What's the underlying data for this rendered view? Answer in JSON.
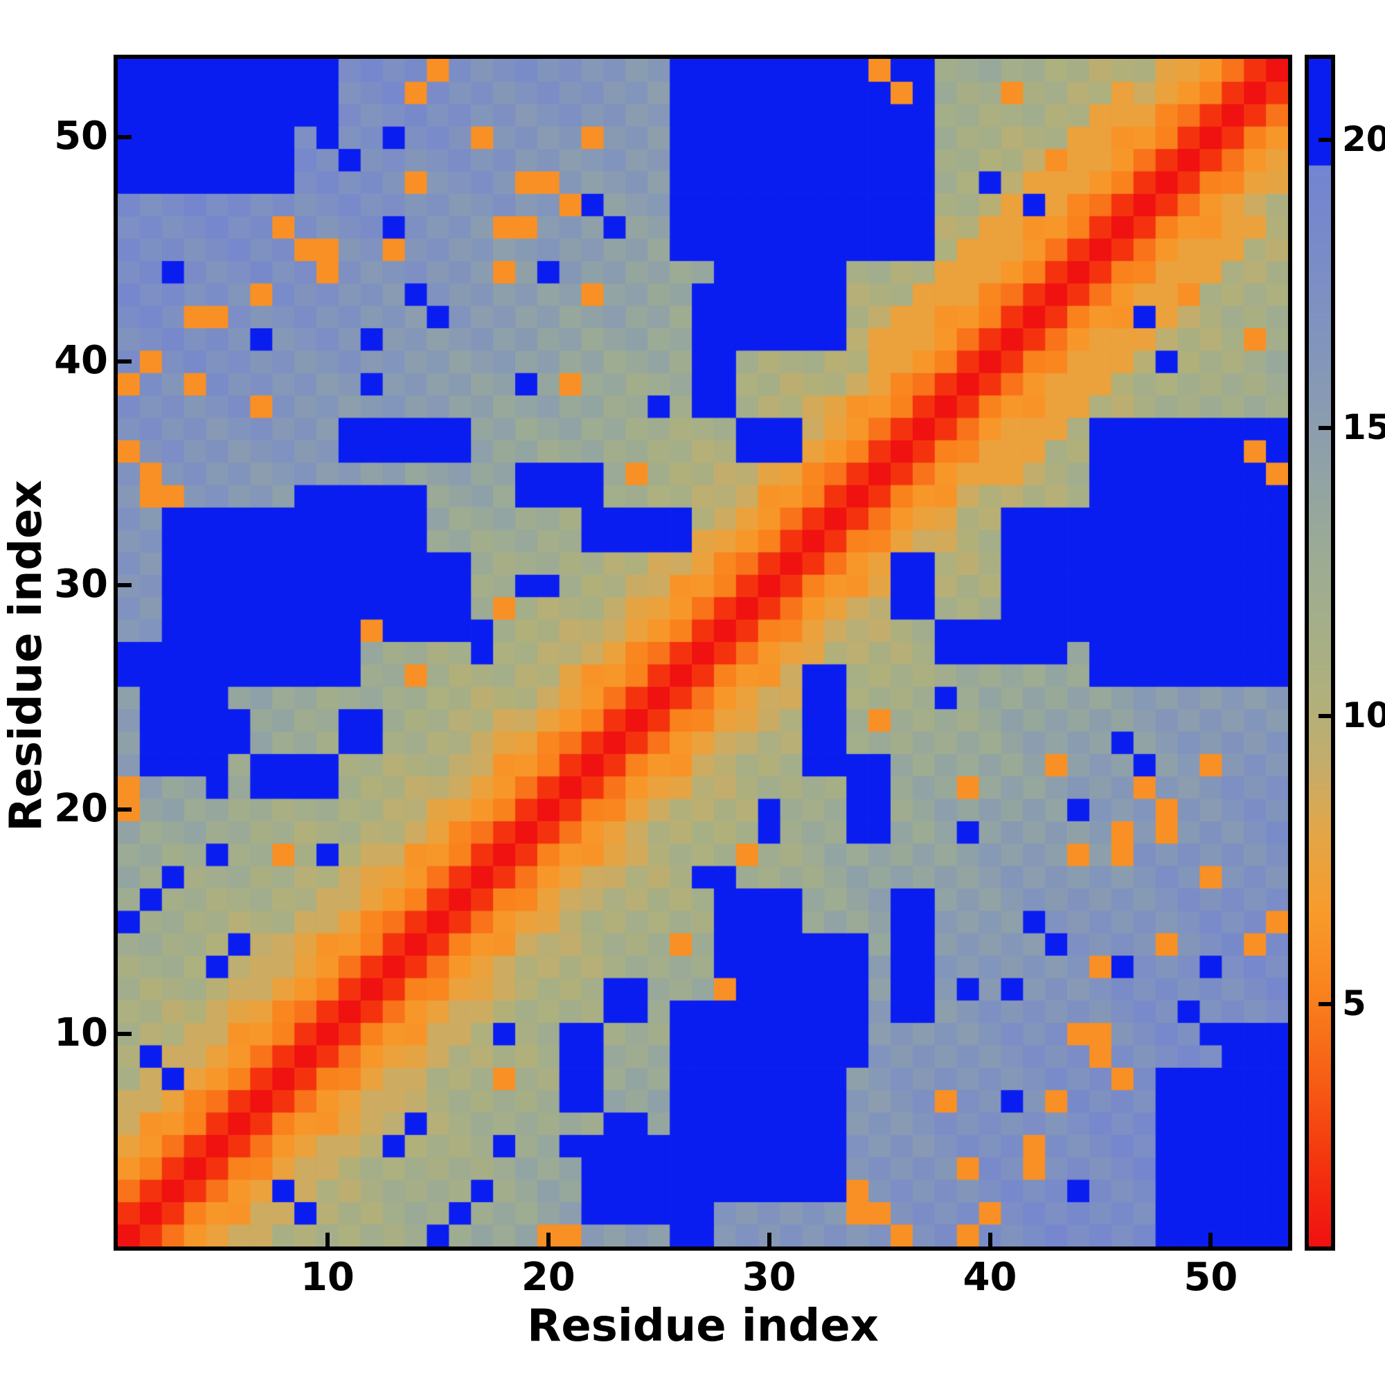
{
  "figure": {
    "background": "#ffffff",
    "frame_color": "#000000",
    "xlabel": "Residue index",
    "ylabel": "Residue index",
    "x_ticks": [
      10,
      20,
      30,
      40,
      50
    ],
    "y_ticks": [
      10,
      20,
      30,
      40,
      50
    ],
    "colorbar_ticks": [
      5,
      10,
      15,
      20
    ]
  },
  "chart_data": {
    "type": "heatmap",
    "title": "",
    "xlabel": "Residue index",
    "ylabel": "Residue index",
    "n_residues": 53,
    "x_range": [
      1,
      53
    ],
    "y_range": [
      1,
      53
    ],
    "value_range": [
      0.8,
      21.4
    ],
    "colorbar_ticks": [
      5,
      10,
      15,
      20
    ],
    "legend": "colorbar right, values ~0.8 (red, diagonal) to ~21.4 (blue, distant pairs)",
    "grid": false,
    "cap_threshold": 19.55,
    "cap_color": "#0a1df0",
    "colormap_stops": [
      [
        0.8,
        "#f01111"
      ],
      [
        2.2,
        "#f4330e"
      ],
      [
        3.6,
        "#f65b15"
      ],
      [
        5.2,
        "#f9821d"
      ],
      [
        6.6,
        "#f89b2b"
      ],
      [
        8.0,
        "#e2a648"
      ],
      [
        9.2,
        "#c3ad6c"
      ],
      [
        10.4,
        "#afb07c"
      ],
      [
        11.6,
        "#a4ae89"
      ],
      [
        12.8,
        "#9cab94"
      ],
      [
        14.0,
        "#92a4a3"
      ],
      [
        15.2,
        "#8a9cb0"
      ],
      [
        16.4,
        "#8295bb"
      ],
      [
        17.6,
        "#7c8ec5"
      ],
      [
        18.8,
        "#7687cd"
      ],
      [
        19.6,
        "#7384d2"
      ]
    ],
    "matrix_model": {
      "description": "Symmetric 53x53 residue-residue distance map. Value(i,j) = base_by_separation[|i-j|] with near-diagonal serration, plus symmetric far-contact blue blocks (capped high values) and isolated blue/orange cells as seen in the image.",
      "base_by_separation": [
        0.8,
        2.2,
        5.0,
        6.2,
        7.2,
        8.6,
        9.6,
        10.2,
        10.6,
        11.0,
        11.3,
        11.7,
        12.0,
        12.3,
        12.6,
        12.9,
        13.2,
        13.5,
        13.8,
        14.0,
        14.3,
        14.5,
        14.8,
        15.0,
        15.2,
        15.4,
        15.6,
        15.8,
        16.0,
        16.2,
        16.4,
        16.6,
        16.7,
        16.9,
        17.0,
        17.2,
        17.3,
        17.4,
        17.5,
        17.6,
        17.7,
        17.8,
        17.9,
        18.0,
        18.0,
        18.1,
        18.1,
        18.2,
        18.2,
        18.2,
        18.3,
        18.3,
        18.3
      ],
      "noise": {
        "k1": 31,
        "k2": 17,
        "mod": 7,
        "amp": 0.33
      },
      "blue_value": 21.0,
      "orange_value": 6.0,
      "blue_blocks": [
        [
          48,
          53,
          1,
          8
        ],
        [
          51,
          53,
          3,
          10
        ],
        [
          26,
          33,
          3,
          11
        ],
        [
          28,
          31,
          7,
          16
        ],
        [
          32,
          34,
          9,
          14
        ],
        [
          23,
          24,
          4,
          6
        ],
        [
          21,
          22,
          7,
          10
        ],
        [
          22,
          25,
          2,
          5
        ],
        [
          26,
          27,
          1,
          4
        ],
        [
          23,
          24,
          11,
          12
        ],
        [
          36,
          37,
          11,
          16
        ],
        [
          45,
          53,
          26,
          37
        ],
        [
          41,
          45,
          28,
          33
        ],
        [
          38,
          43,
          27,
          28
        ],
        [
          36,
          37,
          29,
          31
        ],
        [
          34,
          35,
          19,
          22
        ],
        [
          32,
          33,
          22,
          26
        ]
      ],
      "blue_cells": [
        [
          49,
          11
        ],
        [
          43,
          14
        ],
        [
          42,
          15
        ],
        [
          41,
          12
        ],
        [
          39,
          19
        ],
        [
          46,
          23
        ],
        [
          24,
          12
        ],
        [
          17,
          3
        ],
        [
          16,
          2
        ],
        [
          15,
          1
        ],
        [
          13,
          5
        ],
        [
          9,
          2
        ],
        [
          8,
          3
        ],
        [
          14,
          6
        ],
        [
          30,
          19
        ],
        [
          30,
          20
        ],
        [
          27,
          17
        ],
        [
          28,
          17
        ],
        [
          50,
          10
        ],
        [
          46,
          13
        ],
        [
          18,
          5
        ],
        [
          48,
          40
        ],
        [
          47,
          42
        ],
        [
          41,
          7
        ],
        [
          44,
          3
        ],
        [
          39,
          12
        ],
        [
          44,
          20
        ],
        [
          47,
          22
        ],
        [
          50,
          13
        ],
        [
          25,
          38
        ],
        [
          21,
          5
        ],
        [
          18,
          10
        ]
      ],
      "orange_cells": [
        [
          36,
          1
        ],
        [
          35,
          2
        ],
        [
          34,
          3
        ],
        [
          39,
          1
        ],
        [
          40,
          2
        ],
        [
          42,
          4
        ],
        [
          46,
          8
        ],
        [
          45,
          9
        ],
        [
          43,
          7
        ],
        [
          53,
          15
        ],
        [
          52,
          14
        ],
        [
          50,
          17
        ],
        [
          50,
          22
        ],
        [
          47,
          21
        ],
        [
          39,
          21
        ],
        [
          35,
          24
        ],
        [
          21,
          1
        ],
        [
          18,
          8
        ],
        [
          29,
          18
        ],
        [
          26,
          14
        ],
        [
          44,
          18
        ],
        [
          46,
          19
        ],
        [
          48,
          19
        ],
        [
          43,
          22
        ],
        [
          44,
          10
        ],
        [
          45,
          10
        ],
        [
          48,
          14
        ],
        [
          42,
          5
        ],
        [
          34,
          2
        ],
        [
          48,
          20
        ],
        [
          46,
          18
        ],
        [
          45,
          13
        ],
        [
          38,
          7
        ],
        [
          39,
          4
        ],
        [
          52,
          41
        ],
        [
          49,
          43
        ],
        [
          52,
          36
        ],
        [
          53,
          35
        ],
        [
          20,
          1
        ],
        [
          28,
          12
        ]
      ]
    }
  }
}
